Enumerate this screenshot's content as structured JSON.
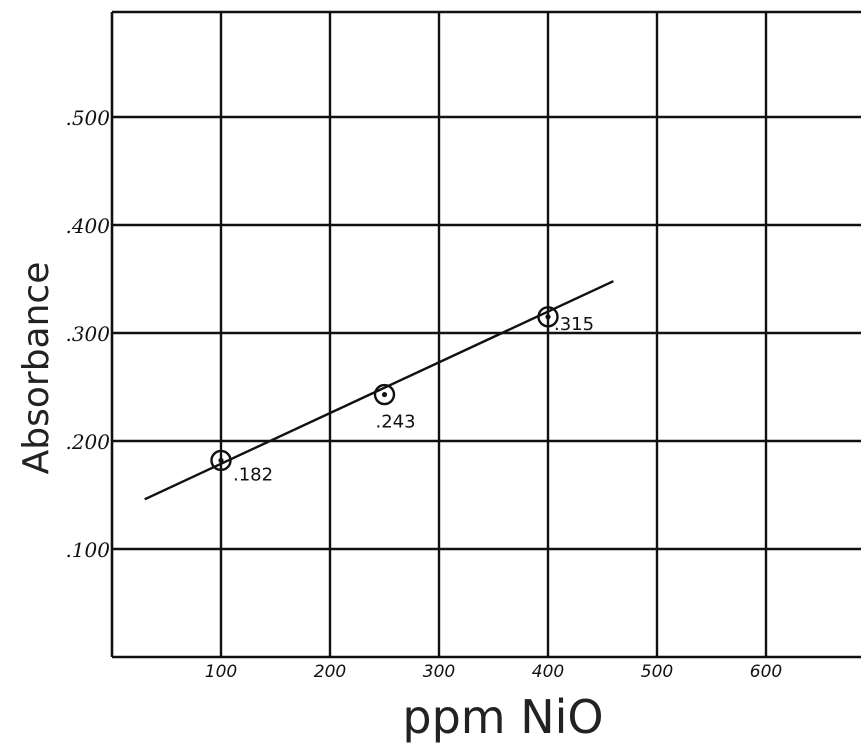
{
  "chart_data": {
    "type": "scatter",
    "title": "",
    "xlabel": "ppm NiO",
    "ylabel": "Absorbance",
    "xlim": [
      0,
      700
    ],
    "ylim": [
      0,
      0.6
    ],
    "grid": true,
    "x_ticks": [
      {
        "value": 100,
        "label": "100"
      },
      {
        "value": 200,
        "label": "200"
      },
      {
        "value": 300,
        "label": "300"
      },
      {
        "value": 400,
        "label": "400"
      },
      {
        "value": 500,
        "label": "500"
      },
      {
        "value": 600,
        "label": "600"
      }
    ],
    "y_ticks": [
      {
        "value": 0.1,
        "label": ".100"
      },
      {
        "value": 0.2,
        "label": ".200"
      },
      {
        "value": 0.3,
        "label": ".300"
      },
      {
        "value": 0.4,
        "label": ".400"
      },
      {
        "value": 0.5,
        "label": ".500"
      }
    ],
    "series": [
      {
        "points": [
          {
            "x": 100,
            "y": 0.182,
            "label": ".182"
          },
          {
            "x": 250,
            "y": 0.243,
            "label": ".243"
          },
          {
            "x": 400,
            "y": 0.315,
            "label": ".315"
          }
        ]
      }
    ],
    "fit_line": {
      "x_start": 30,
      "y_start": 0.146,
      "x_end": 460,
      "y_end": 0.348
    }
  }
}
